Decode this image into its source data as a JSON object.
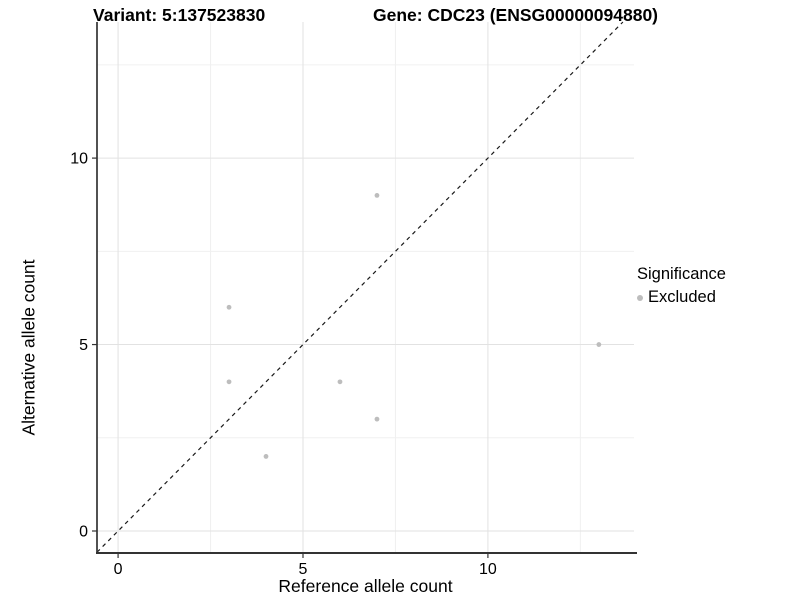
{
  "titles": {
    "left": "Variant: 5:137523830",
    "right": "Gene: CDC23 (ENSG00000094880)"
  },
  "chart_data": {
    "type": "scatter",
    "xlabel": "Reference allele count",
    "ylabel": "Alternative allele count",
    "x_ticks": [
      0,
      5,
      10
    ],
    "y_ticks": [
      0,
      5,
      10
    ],
    "x_tick_labels": [
      "0",
      "5",
      "10"
    ],
    "y_tick_labels": [
      "0",
      "5",
      "10"
    ],
    "x_minor_ticks": [
      2.5,
      7.5,
      12.5
    ],
    "y_minor_ticks": [
      2.5,
      7.5,
      12.5
    ],
    "xlim": [
      -0.57,
      13.95
    ],
    "ylim": [
      -0.59,
      13.65
    ],
    "grid": true,
    "series": [
      {
        "name": "Excluded",
        "color": "#bdbdbd",
        "points": [
          {
            "x": 3,
            "y": 6
          },
          {
            "x": 3,
            "y": 4
          },
          {
            "x": 4,
            "y": 2
          },
          {
            "x": 6,
            "y": 4
          },
          {
            "x": 7,
            "y": 3
          },
          {
            "x": 7,
            "y": 9
          },
          {
            "x": 13,
            "y": 5
          }
        ]
      }
    ],
    "abline": {
      "slope": 1,
      "intercept": 0,
      "style": "dashed",
      "color": "#1a1a1a"
    }
  },
  "legend": {
    "title": "Significance",
    "position": "right",
    "entries": [
      {
        "label": "Excluded",
        "color": "#bdbdbd",
        "marker": "circle"
      }
    ]
  },
  "style_colors": {
    "major_grid": "#e2e2e2",
    "minor_grid": "#f0f0f0",
    "axis_line": "#333333",
    "tick_label": "#000000",
    "point": "#bdbdbd"
  }
}
